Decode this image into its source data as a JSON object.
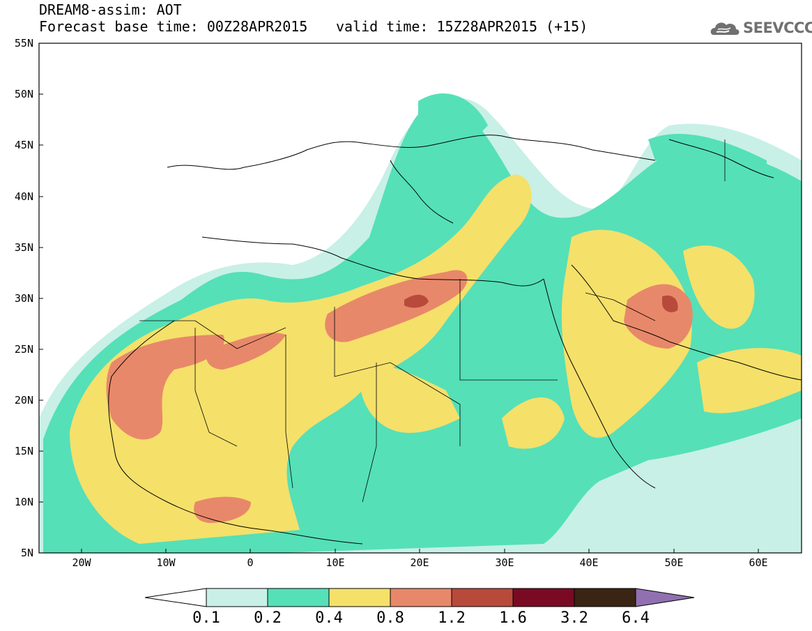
{
  "title": {
    "line1": "DREAM8-assim: AOT",
    "line2": "Forecast base time: 00Z28APR2015",
    "valid": "valid time: 15Z28APR2015 (+15)"
  },
  "logo": {
    "text": "SEEVCCC",
    "icon": "cloud-logo-icon"
  },
  "map": {
    "lat_labels": [
      "55N",
      "50N",
      "45N",
      "40N",
      "35N",
      "30N",
      "25N",
      "20N",
      "15N",
      "10N",
      "5N"
    ],
    "lon_labels": [
      "20W",
      "10W",
      "0",
      "10E",
      "20E",
      "30E",
      "40E",
      "50E",
      "60E"
    ],
    "colors": {
      "c1": "#c8f0e6",
      "c2": "#55e0b8",
      "c3": "#f5e06a",
      "c4": "#e8886a",
      "c5": "#b84a3c",
      "c6": "#7a0a24",
      "c7": "#3a2414",
      "c8": "#9070b0"
    }
  },
  "colorbar": {
    "labels": [
      "0.1",
      "0.2",
      "0.4",
      "0.8",
      "1.2",
      "1.6",
      "3.2",
      "6.4"
    ],
    "colors": [
      "#c8f0e6",
      "#55e0b8",
      "#f5e06a",
      "#e8886a",
      "#b84a3c",
      "#7a0a24",
      "#3a2414"
    ],
    "low_color": "#ffffff",
    "high_color": "#9070b0"
  }
}
